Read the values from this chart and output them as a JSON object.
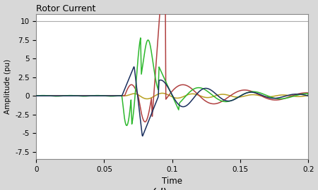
{
  "title": "Rotor Current",
  "xlabel": "Time",
  "ylabel": "Amplitude (pu)",
  "xlim": [
    0,
    0.2
  ],
  "ylim": [
    -8.5,
    11
  ],
  "yticks": [
    -7.5,
    -5,
    -2.5,
    0,
    2.5,
    5,
    7.5,
    10
  ],
  "xticks": [
    0,
    0.05,
    0.1,
    0.15,
    0.2
  ],
  "fig_bg": "#d8d8d8",
  "plot_bg": "#ffffff",
  "line_colors": {
    "blue": "#1a2f5e",
    "green": "#2db82d",
    "red": "#b04040",
    "yellow": "#b8a020"
  },
  "line_width": 1.1
}
